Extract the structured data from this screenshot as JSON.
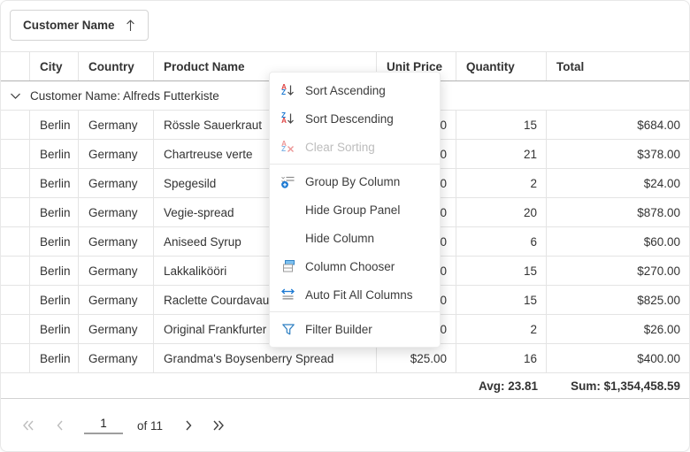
{
  "group_panel": {
    "chip_label": "Customer Name",
    "sort_direction": "ascending"
  },
  "grid": {
    "columns": [
      "City",
      "Country",
      "Product Name",
      "Unit Price",
      "Quantity",
      "Total"
    ],
    "group_row_label": "Customer Name: Alfreds Futterkiste",
    "rows": [
      {
        "city": "Berlin",
        "country": "Germany",
        "product": "Rössle Sauerkraut",
        "unit_price": "$45.60",
        "quantity": "15",
        "total": "$684.00"
      },
      {
        "city": "Berlin",
        "country": "Germany",
        "product": "Chartreuse verte",
        "unit_price": "$18.00",
        "quantity": "21",
        "total": "$378.00"
      },
      {
        "city": "Berlin",
        "country": "Germany",
        "product": "Spegesild",
        "unit_price": "$12.00",
        "quantity": "2",
        "total": "$24.00"
      },
      {
        "city": "Berlin",
        "country": "Germany",
        "product": "Vegie-spread",
        "unit_price": "$43.90",
        "quantity": "20",
        "total": "$878.00"
      },
      {
        "city": "Berlin",
        "country": "Germany",
        "product": "Aniseed Syrup",
        "unit_price": "$10.00",
        "quantity": "6",
        "total": "$60.00"
      },
      {
        "city": "Berlin",
        "country": "Germany",
        "product": "Lakkalikööri",
        "unit_price": "$18.00",
        "quantity": "15",
        "total": "$270.00"
      },
      {
        "city": "Berlin",
        "country": "Germany",
        "product": "Raclette Courdavault",
        "unit_price": "$55.00",
        "quantity": "15",
        "total": "$825.00"
      },
      {
        "city": "Berlin",
        "country": "Germany",
        "product": "Original Frankfurter grüne Soße",
        "unit_price": "$13.00",
        "quantity": "2",
        "total": "$26.00"
      },
      {
        "city": "Berlin",
        "country": "Germany",
        "product": "Grandma's Boysenberry Spread",
        "unit_price": "$25.00",
        "quantity": "16",
        "total": "$400.00"
      }
    ],
    "summary": {
      "quantity_avg": "Avg: 23.81",
      "total_sum": "Sum: $1,354,458.59"
    }
  },
  "pager": {
    "page": "1",
    "of_label": "of 11"
  },
  "context_menu": {
    "items": [
      {
        "label": "Sort Ascending",
        "icon": "sort-ascending-icon",
        "disabled": false,
        "separator_after": false
      },
      {
        "label": "Sort Descending",
        "icon": "sort-descending-icon",
        "disabled": false,
        "separator_after": false
      },
      {
        "label": "Clear Sorting",
        "icon": "clear-sorting-icon",
        "disabled": true,
        "separator_after": true
      },
      {
        "label": "Group By Column",
        "icon": "group-by-column-icon",
        "disabled": false,
        "separator_after": false
      },
      {
        "label": "Hide Group Panel",
        "icon": null,
        "disabled": false,
        "separator_after": false
      },
      {
        "label": "Hide Column",
        "icon": null,
        "disabled": false,
        "separator_after": false
      },
      {
        "label": "Column Chooser",
        "icon": "column-chooser-icon",
        "disabled": false,
        "separator_after": false
      },
      {
        "label": "Auto Fit All Columns",
        "icon": "auto-fit-all-columns-icon",
        "disabled": false,
        "separator_after": true
      },
      {
        "label": "Filter Builder",
        "icon": "filter-builder-icon",
        "disabled": false,
        "separator_after": false
      }
    ]
  },
  "colors": {
    "accent_blue": "#1d7ad3",
    "icon_red": "#dd4040",
    "text": "#333333",
    "grid_border": "#e4e4e4",
    "header_border": "#b3b3b3",
    "disabled_text": "#bdbdbd"
  }
}
